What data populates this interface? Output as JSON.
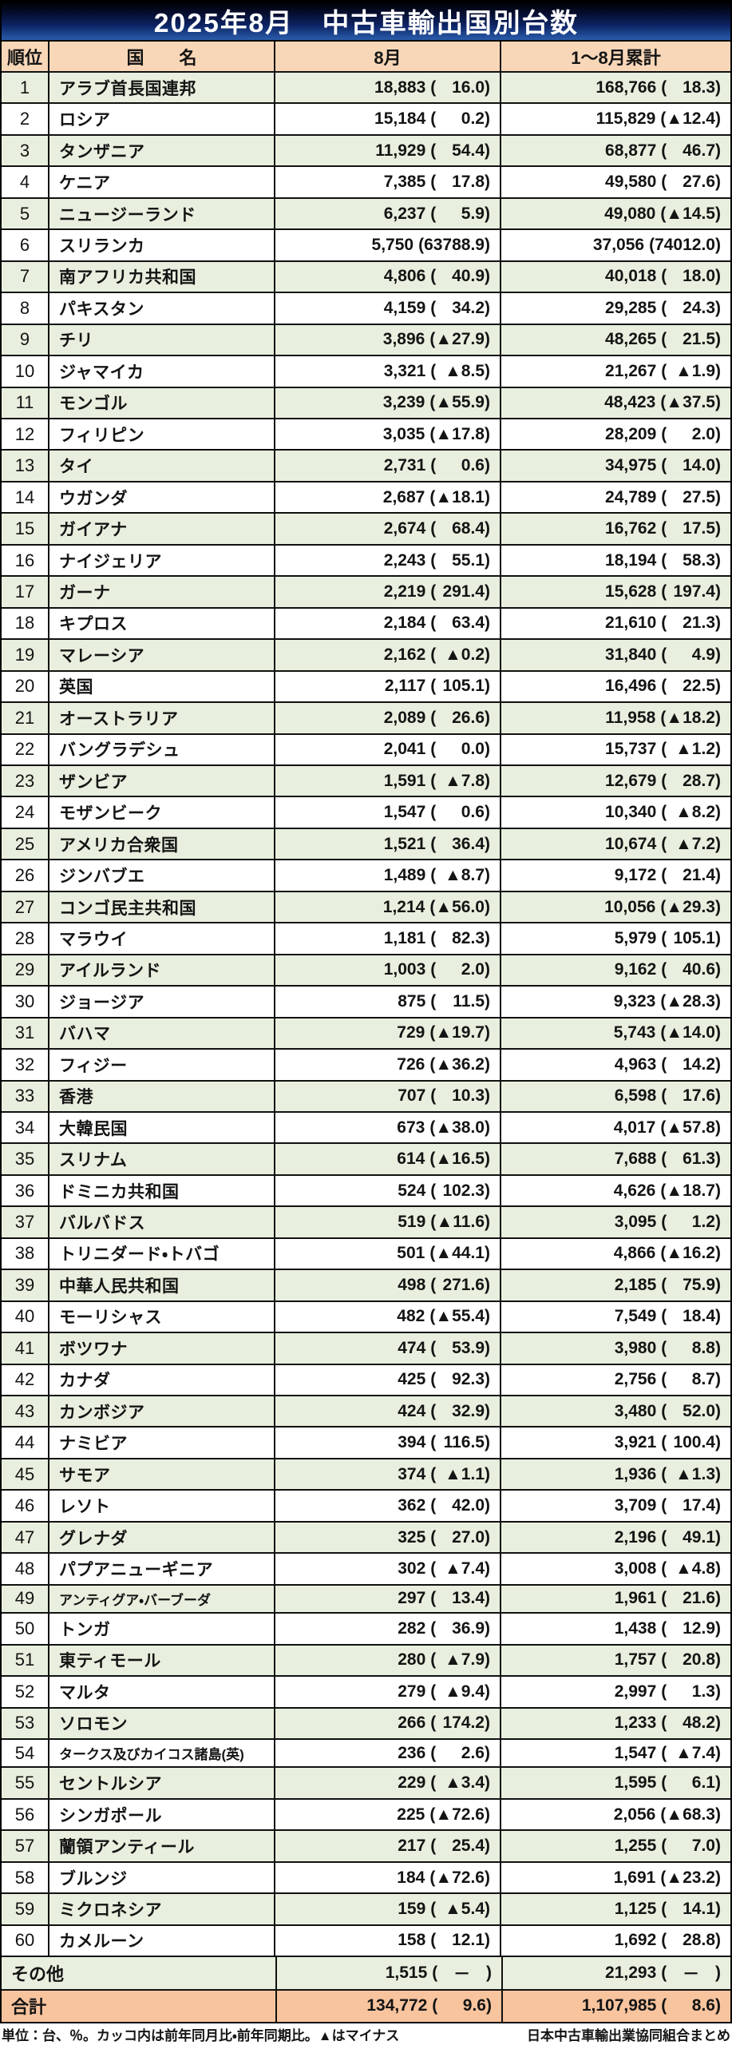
{
  "title": "2025年8月　中古車輸出国別台数",
  "columns": {
    "rank": "順位",
    "country": "国　　名",
    "august": "8月",
    "cumulative": "1～8月累計"
  },
  "rows": [
    {
      "rank": 1,
      "country": "アラブ首長国連邦",
      "aug": "18,883",
      "aug_pct": "16.0",
      "cum": "168,766",
      "cum_pct": "18.3"
    },
    {
      "rank": 2,
      "country": "ロシア",
      "aug": "15,184",
      "aug_pct": "0.2",
      "cum": "115,829",
      "cum_pct": "▲12.4"
    },
    {
      "rank": 3,
      "country": "タンザニア",
      "aug": "11,929",
      "aug_pct": "54.4",
      "cum": "68,877",
      "cum_pct": "46.7"
    },
    {
      "rank": 4,
      "country": "ケニア",
      "aug": "7,385",
      "aug_pct": "17.8",
      "cum": "49,580",
      "cum_pct": "27.6"
    },
    {
      "rank": 5,
      "country": "ニュージーランド",
      "aug": "6,237",
      "aug_pct": "5.9",
      "cum": "49,080",
      "cum_pct": "▲14.5"
    },
    {
      "rank": 6,
      "country": "スリランカ",
      "aug": "5,750",
      "aug_pct": "63788.9",
      "cum": "37,056",
      "cum_pct": "74012.0"
    },
    {
      "rank": 7,
      "country": "南アフリカ共和国",
      "aug": "4,806",
      "aug_pct": "40.9",
      "cum": "40,018",
      "cum_pct": "18.0"
    },
    {
      "rank": 8,
      "country": "パキスタン",
      "aug": "4,159",
      "aug_pct": "34.2",
      "cum": "29,285",
      "cum_pct": "24.3"
    },
    {
      "rank": 9,
      "country": "チリ",
      "aug": "3,896",
      "aug_pct": "▲27.9",
      "cum": "48,265",
      "cum_pct": "21.5"
    },
    {
      "rank": 10,
      "country": "ジャマイカ",
      "aug": "3,321",
      "aug_pct": "▲8.5",
      "cum": "21,267",
      "cum_pct": "▲1.9"
    },
    {
      "rank": 11,
      "country": "モンゴル",
      "aug": "3,239",
      "aug_pct": "▲55.9",
      "cum": "48,423",
      "cum_pct": "▲37.5"
    },
    {
      "rank": 12,
      "country": "フィリピン",
      "aug": "3,035",
      "aug_pct": "▲17.8",
      "cum": "28,209",
      "cum_pct": "2.0"
    },
    {
      "rank": 13,
      "country": "タイ",
      "aug": "2,731",
      "aug_pct": "0.6",
      "cum": "34,975",
      "cum_pct": "14.0"
    },
    {
      "rank": 14,
      "country": "ウガンダ",
      "aug": "2,687",
      "aug_pct": "▲18.1",
      "cum": "24,789",
      "cum_pct": "27.5"
    },
    {
      "rank": 15,
      "country": "ガイアナ",
      "aug": "2,674",
      "aug_pct": "68.4",
      "cum": "16,762",
      "cum_pct": "17.5"
    },
    {
      "rank": 16,
      "country": "ナイジェリア",
      "aug": "2,243",
      "aug_pct": "55.1",
      "cum": "18,194",
      "cum_pct": "58.3"
    },
    {
      "rank": 17,
      "country": "ガーナ",
      "aug": "2,219",
      "aug_pct": "291.4",
      "cum": "15,628",
      "cum_pct": "197.4"
    },
    {
      "rank": 18,
      "country": "キプロス",
      "aug": "2,184",
      "aug_pct": "63.4",
      "cum": "21,610",
      "cum_pct": "21.3"
    },
    {
      "rank": 19,
      "country": "マレーシア",
      "aug": "2,162",
      "aug_pct": "▲0.2",
      "cum": "31,840",
      "cum_pct": "4.9"
    },
    {
      "rank": 20,
      "country": "英国",
      "aug": "2,117",
      "aug_pct": "105.1",
      "cum": "16,496",
      "cum_pct": "22.5"
    },
    {
      "rank": 21,
      "country": "オーストラリア",
      "aug": "2,089",
      "aug_pct": "26.6",
      "cum": "11,958",
      "cum_pct": "▲18.2"
    },
    {
      "rank": 22,
      "country": "バングラデシュ",
      "aug": "2,041",
      "aug_pct": "0.0",
      "cum": "15,737",
      "cum_pct": "▲1.2"
    },
    {
      "rank": 23,
      "country": "ザンビア",
      "aug": "1,591",
      "aug_pct": "▲7.8",
      "cum": "12,679",
      "cum_pct": "28.7"
    },
    {
      "rank": 24,
      "country": "モザンビーク",
      "aug": "1,547",
      "aug_pct": "0.6",
      "cum": "10,340",
      "cum_pct": "▲8.2"
    },
    {
      "rank": 25,
      "country": "アメリカ合衆国",
      "aug": "1,521",
      "aug_pct": "36.4",
      "cum": "10,674",
      "cum_pct": "▲7.2"
    },
    {
      "rank": 26,
      "country": "ジンバブエ",
      "aug": "1,489",
      "aug_pct": "▲8.7",
      "cum": "9,172",
      "cum_pct": "21.4"
    },
    {
      "rank": 27,
      "country": "コンゴ民主共和国",
      "aug": "1,214",
      "aug_pct": "▲56.0",
      "cum": "10,056",
      "cum_pct": "▲29.3"
    },
    {
      "rank": 28,
      "country": "マラウイ",
      "aug": "1,181",
      "aug_pct": "82.3",
      "cum": "5,979",
      "cum_pct": "105.1"
    },
    {
      "rank": 29,
      "country": "アイルランド",
      "aug": "1,003",
      "aug_pct": "2.0",
      "cum": "9,162",
      "cum_pct": "40.6"
    },
    {
      "rank": 30,
      "country": "ジョージア",
      "aug": "875",
      "aug_pct": "11.5",
      "cum": "9,323",
      "cum_pct": "▲28.3"
    },
    {
      "rank": 31,
      "country": "バハマ",
      "aug": "729",
      "aug_pct": "▲19.7",
      "cum": "5,743",
      "cum_pct": "▲14.0"
    },
    {
      "rank": 32,
      "country": "フィジー",
      "aug": "726",
      "aug_pct": "▲36.2",
      "cum": "4,963",
      "cum_pct": "14.2"
    },
    {
      "rank": 33,
      "country": "香港",
      "aug": "707",
      "aug_pct": "10.3",
      "cum": "6,598",
      "cum_pct": "17.6"
    },
    {
      "rank": 34,
      "country": "大韓民国",
      "aug": "673",
      "aug_pct": "▲38.0",
      "cum": "4,017",
      "cum_pct": "▲57.8"
    },
    {
      "rank": 35,
      "country": "スリナム",
      "aug": "614",
      "aug_pct": "▲16.5",
      "cum": "7,688",
      "cum_pct": "61.3"
    },
    {
      "rank": 36,
      "country": "ドミニカ共和国",
      "aug": "524",
      "aug_pct": "102.3",
      "cum": "4,626",
      "cum_pct": "▲18.7"
    },
    {
      "rank": 37,
      "country": "バルバドス",
      "aug": "519",
      "aug_pct": "▲11.6",
      "cum": "3,095",
      "cum_pct": "1.2"
    },
    {
      "rank": 38,
      "country": "トリニダード・トバゴ",
      "aug": "501",
      "aug_pct": "▲44.1",
      "cum": "4,866",
      "cum_pct": "▲16.2"
    },
    {
      "rank": 39,
      "country": "中華人民共和国",
      "aug": "498",
      "aug_pct": "271.6",
      "cum": "2,185",
      "cum_pct": "75.9"
    },
    {
      "rank": 40,
      "country": "モーリシャス",
      "aug": "482",
      "aug_pct": "▲55.4",
      "cum": "7,549",
      "cum_pct": "18.4"
    },
    {
      "rank": 41,
      "country": "ボツワナ",
      "aug": "474",
      "aug_pct": "53.9",
      "cum": "3,980",
      "cum_pct": "8.8"
    },
    {
      "rank": 42,
      "country": "カナダ",
      "aug": "425",
      "aug_pct": "92.3",
      "cum": "2,756",
      "cum_pct": "8.7"
    },
    {
      "rank": 43,
      "country": "カンボジア",
      "aug": "424",
      "aug_pct": "32.9",
      "cum": "3,480",
      "cum_pct": "52.0"
    },
    {
      "rank": 44,
      "country": "ナミビア",
      "aug": "394",
      "aug_pct": "116.5",
      "cum": "3,921",
      "cum_pct": "100.4"
    },
    {
      "rank": 45,
      "country": "サモア",
      "aug": "374",
      "aug_pct": "▲1.1",
      "cum": "1,936",
      "cum_pct": "▲1.3"
    },
    {
      "rank": 46,
      "country": "レソト",
      "aug": "362",
      "aug_pct": "42.0",
      "cum": "3,709",
      "cum_pct": "17.4"
    },
    {
      "rank": 47,
      "country": "グレナダ",
      "aug": "325",
      "aug_pct": "27.0",
      "cum": "2,196",
      "cum_pct": "49.1"
    },
    {
      "rank": 48,
      "country": "パプアニューギニア",
      "aug": "302",
      "aug_pct": "▲7.4",
      "cum": "3,008",
      "cum_pct": "▲4.8"
    },
    {
      "rank": 49,
      "country": "アンティグア・バーブーダ",
      "aug": "297",
      "aug_pct": "13.4",
      "cum": "1,961",
      "cum_pct": "21.6"
    },
    {
      "rank": 50,
      "country": "トンガ",
      "aug": "282",
      "aug_pct": "36.9",
      "cum": "1,438",
      "cum_pct": "12.9"
    },
    {
      "rank": 51,
      "country": "東ティモール",
      "aug": "280",
      "aug_pct": "▲7.9",
      "cum": "1,757",
      "cum_pct": "20.8"
    },
    {
      "rank": 52,
      "country": "マルタ",
      "aug": "279",
      "aug_pct": "▲9.4",
      "cum": "2,997",
      "cum_pct": "1.3"
    },
    {
      "rank": 53,
      "country": "ソロモン",
      "aug": "266",
      "aug_pct": "174.2",
      "cum": "1,233",
      "cum_pct": "48.2"
    },
    {
      "rank": 54,
      "country": "タークス及びカイコス諸島(英)",
      "aug": "236",
      "aug_pct": "2.6",
      "cum": "1,547",
      "cum_pct": "▲7.4"
    },
    {
      "rank": 55,
      "country": "セントルシア",
      "aug": "229",
      "aug_pct": "▲3.4",
      "cum": "1,595",
      "cum_pct": "6.1"
    },
    {
      "rank": 56,
      "country": "シンガポール",
      "aug": "225",
      "aug_pct": "▲72.6",
      "cum": "2,056",
      "cum_pct": "▲68.3"
    },
    {
      "rank": 57,
      "country": "蘭領アンティール",
      "aug": "217",
      "aug_pct": "25.4",
      "cum": "1,255",
      "cum_pct": "7.0"
    },
    {
      "rank": 58,
      "country": "ブルンジ",
      "aug": "184",
      "aug_pct": "▲72.6",
      "cum": "1,691",
      "cum_pct": "▲23.2"
    },
    {
      "rank": 59,
      "country": "ミクロネシア",
      "aug": "159",
      "aug_pct": "▲5.4",
      "cum": "1,125",
      "cum_pct": "14.1"
    },
    {
      "rank": 60,
      "country": "カメルーン",
      "aug": "158",
      "aug_pct": "12.1",
      "cum": "1,692",
      "cum_pct": "28.8"
    }
  ],
  "others": {
    "label": "その他",
    "aug": "1,515",
    "aug_pct": "－",
    "cum": "21,293",
    "cum_pct": "－"
  },
  "total": {
    "label": "合計",
    "aug": "134,772",
    "aug_pct": "9.6",
    "cum": "1,107,985",
    "cum_pct": "8.6"
  },
  "footnote_left": "単位：台、％。カッコ内は前年同月比・前年同期比。▲はマイナス",
  "footnote_right": "日本中古車輸出業協同組合まとめ",
  "colors": {
    "header_bg": "#f8d7b8",
    "row_green": "#e8efde",
    "row_white": "#ffffff",
    "total_bg": "#f8c49e",
    "title_gradient_top": "#000000",
    "title_gradient_bottom": "#2a5cab",
    "border": "#111111",
    "title_text": "#ffffff"
  }
}
